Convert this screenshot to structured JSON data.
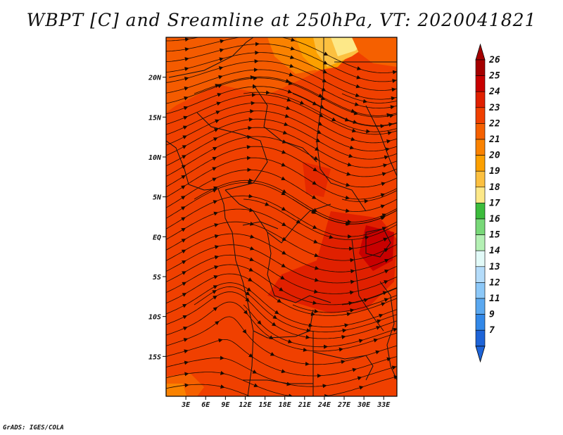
{
  "title": "WBPT [C] and Sreamline at 250hPa, VT: 2020041821",
  "credit": "GrADS: IGES/COLA",
  "map": {
    "lon_range": [
      0,
      35
    ],
    "lat_range": [
      -20,
      25
    ],
    "lon_ticks": [
      {
        "value": 3,
        "label": "3E"
      },
      {
        "value": 6,
        "label": "6E"
      },
      {
        "value": 9,
        "label": "9E"
      },
      {
        "value": 12,
        "label": "12E"
      },
      {
        "value": 15,
        "label": "15E"
      },
      {
        "value": 18,
        "label": "18E"
      },
      {
        "value": 21,
        "label": "21E"
      },
      {
        "value": 24,
        "label": "24E"
      },
      {
        "value": 27,
        "label": "27E"
      },
      {
        "value": 30,
        "label": "30E"
      },
      {
        "value": 33,
        "label": "33E"
      }
    ],
    "lat_ticks": [
      {
        "value": 20,
        "label": "20N"
      },
      {
        "value": 15,
        "label": "15N"
      },
      {
        "value": 10,
        "label": "10N"
      },
      {
        "value": 5,
        "label": "5N"
      },
      {
        "value": 0,
        "label": "EQ"
      },
      {
        "value": -5,
        "label": "5S"
      },
      {
        "value": -10,
        "label": "10S"
      },
      {
        "value": -15,
        "label": "15S"
      }
    ]
  },
  "colorbar": {
    "levels": [
      {
        "label": "26",
        "color": "#a50000"
      },
      {
        "label": "25",
        "color": "#c80000"
      },
      {
        "label": "24",
        "color": "#e02000"
      },
      {
        "label": "23",
        "color": "#f04000"
      },
      {
        "label": "22",
        "color": "#f56000"
      },
      {
        "label": "21",
        "color": "#fa8200"
      },
      {
        "label": "20",
        "color": "#fca000"
      },
      {
        "label": "19",
        "color": "#fcc040"
      },
      {
        "label": "18",
        "color": "#fde888"
      },
      {
        "label": "17",
        "color": "#3cbc3c"
      },
      {
        "label": "16",
        "color": "#78d878"
      },
      {
        "label": "15",
        "color": "#b4f0b4"
      },
      {
        "label": "14",
        "color": "#e2faf8"
      },
      {
        "label": "13",
        "color": "#b4dcfa"
      },
      {
        "label": "12",
        "color": "#8cc8f8"
      },
      {
        "label": "11",
        "color": "#5aa8f0"
      },
      {
        "label": "9",
        "color": "#3288e8"
      },
      {
        "label": "7",
        "color": "#1e64d8"
      }
    ],
    "top_color": "#a50000",
    "bottom_color": "#1e64d8"
  }
}
